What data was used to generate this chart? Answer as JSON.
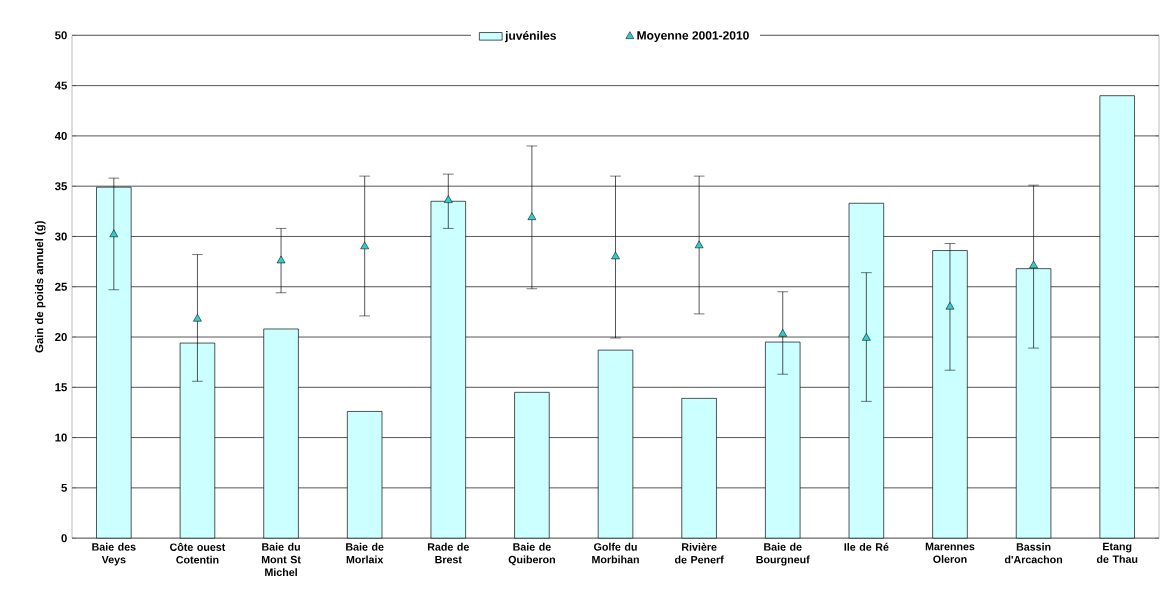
{
  "chart_data": {
    "type": "bar",
    "ylabel": "Gain de poids annuel (g)",
    "categories": [
      "Baie des Veys",
      "Côte ouest Cotentin",
      "Baie du Mont St Michel",
      "Baie de Morlaix",
      "Rade de Brest",
      "Baie de Quiberon",
      "Golfe du Morbihan",
      "Rivière de Penerf",
      "Baie de Bourgneuf",
      "Ile de Ré",
      "Marennes Oleron",
      "Bassin d'Arcachon",
      "Etang de Thau"
    ],
    "series": [
      {
        "name": "juvéniles",
        "color": "#ccffff",
        "values": [
          34.9,
          19.4,
          20.8,
          12.6,
          33.5,
          14.5,
          18.7,
          13.9,
          19.5,
          33.3,
          28.6,
          26.8,
          44.0
        ]
      },
      {
        "name": "Moyenne 2001-2010",
        "type": "scatter",
        "color": "#33cccc",
        "marker": "triangle",
        "values": [
          30.2,
          21.8,
          27.6,
          29.0,
          33.6,
          31.9,
          28.0,
          29.1,
          20.3,
          19.9,
          23.0,
          27.1,
          null
        ],
        "errors": [
          [
            24.7,
            35.8
          ],
          [
            15.6,
            28.2
          ],
          [
            24.4,
            30.8
          ],
          [
            22.1,
            36.0
          ],
          [
            30.8,
            36.2
          ],
          [
            24.8,
            39.0
          ],
          [
            19.9,
            36.0
          ],
          [
            22.3,
            36.0
          ],
          [
            16.3,
            24.5
          ],
          [
            13.6,
            26.4
          ],
          [
            16.7,
            29.3
          ],
          [
            18.9,
            35.1
          ],
          null
        ]
      }
    ],
    "ylim": [
      0,
      50
    ],
    "yticks": [
      0,
      5,
      10,
      15,
      20,
      25,
      30,
      35,
      40,
      45,
      50
    ],
    "grid": "y",
    "legend": "top"
  }
}
